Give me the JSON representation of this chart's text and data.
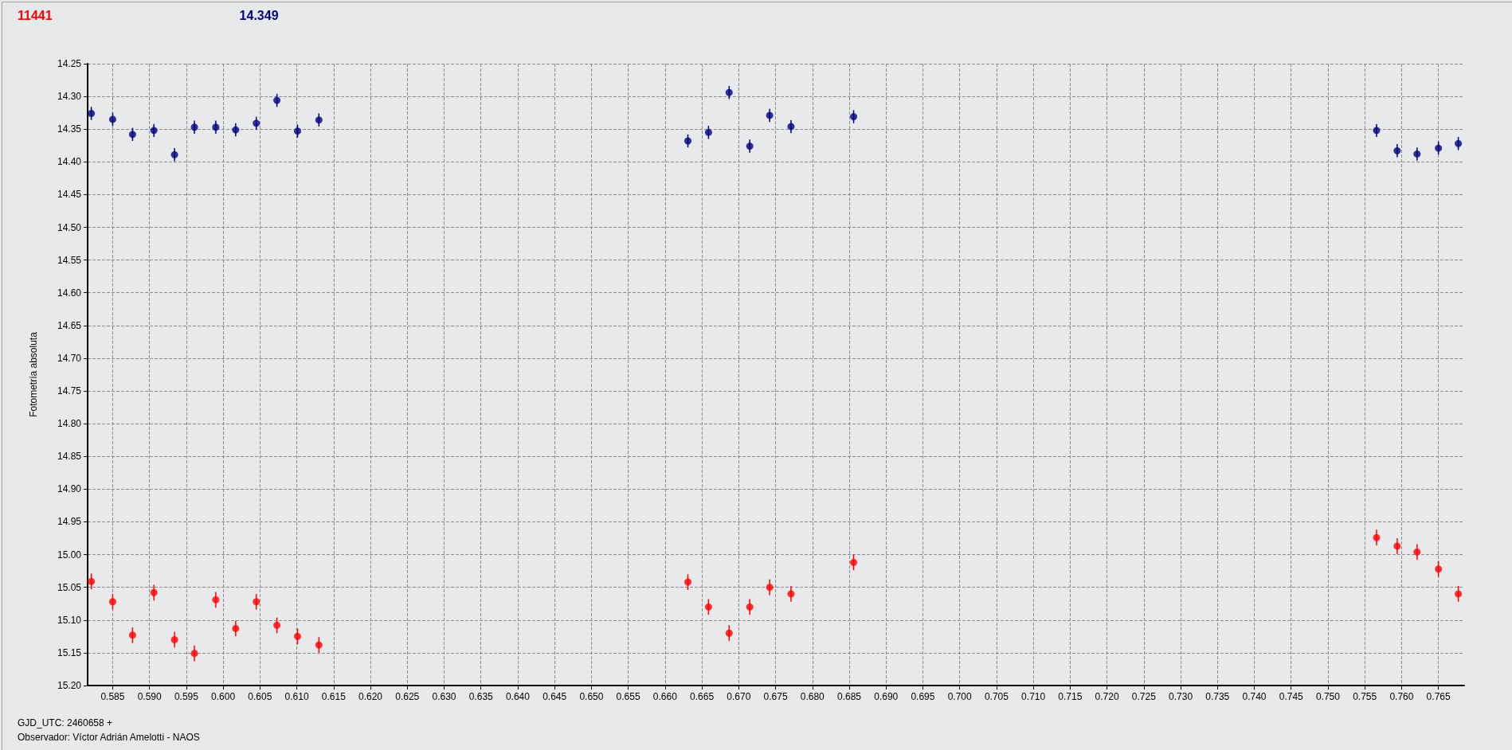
{
  "chart_data": {
    "type": "scatter",
    "ylabel": "Fotometría absoluta",
    "annotations": [
      "GJD_UTC: 2460658 +",
      "Observador: Víctor Adrián Amelotti - NAOS"
    ],
    "x": [
      0.5821,
      0.585,
      0.5877,
      0.5906,
      0.5934,
      0.5961,
      0.599,
      0.6017,
      0.6045,
      0.6073,
      0.6101,
      0.613,
      0.6631,
      0.6659,
      0.6687,
      0.6715,
      0.6742,
      0.6771,
      0.6856,
      0.7566,
      0.7594,
      0.7621,
      0.765,
      0.7677
    ],
    "series": [
      {
        "name": "11441",
        "color": "#ff0000",
        "values": [
          15.041,
          15.072,
          15.123,
          15.058,
          15.13,
          15.151,
          15.069,
          15.113,
          15.072,
          15.108,
          15.125,
          15.138,
          15.042,
          15.08,
          15.12,
          15.08,
          15.05,
          15.06,
          15.012,
          14.974,
          14.987,
          14.996,
          15.022,
          15.06
        ],
        "errors": [
          0.012,
          0.012,
          0.012,
          0.012,
          0.012,
          0.012,
          0.012,
          0.012,
          0.012,
          0.012,
          0.012,
          0.012,
          0.012,
          0.012,
          0.012,
          0.012,
          0.012,
          0.012,
          0.012,
          0.012,
          0.012,
          0.012,
          0.012,
          0.012
        ]
      },
      {
        "name": "14.349",
        "color": "#000080",
        "values": [
          14.326,
          14.335,
          14.358,
          14.352,
          14.389,
          14.347,
          14.347,
          14.351,
          14.341,
          14.306,
          14.353,
          14.336,
          14.368,
          14.355,
          14.294,
          14.376,
          14.329,
          14.346,
          14.331,
          14.352,
          14.383,
          14.388,
          14.379,
          14.372
        ],
        "errors": [
          0.01,
          0.01,
          0.01,
          0.01,
          0.01,
          0.01,
          0.01,
          0.01,
          0.01,
          0.01,
          0.01,
          0.01,
          0.01,
          0.01,
          0.01,
          0.01,
          0.01,
          0.01,
          0.01,
          0.01,
          0.01,
          0.01,
          0.01,
          0.01
        ]
      }
    ],
    "xlim": [
      0.5816,
      0.7685
    ],
    "xticks": [
      0.585,
      {
        "value": 0.59,
        "label": "0.590"
      },
      0.595,
      {
        "value": 0.6,
        "label": "0.600"
      },
      0.605,
      {
        "value": 0.61,
        "label": "0.610"
      },
      0.615,
      {
        "value": 0.62,
        "label": "0.620"
      },
      0.625,
      {
        "value": 0.63,
        "label": "0.630"
      },
      0.635,
      {
        "value": 0.64,
        "label": "0.640"
      },
      0.645,
      {
        "value": 0.65,
        "label": "0.650"
      },
      0.655,
      {
        "value": 0.66,
        "label": "0.660"
      },
      0.665,
      {
        "value": 0.67,
        "label": "0.670"
      },
      0.675,
      {
        "value": 0.68,
        "label": "0.680"
      },
      0.685,
      {
        "value": 0.69,
        "label": "0.690"
      },
      0.695,
      {
        "value": 0.7,
        "label": "0.700"
      },
      0.705,
      {
        "value": 0.71,
        "label": "0.710"
      },
      0.715,
      {
        "value": 0.72,
        "label": "0.720"
      },
      0.725,
      {
        "value": 0.73,
        "label": "0.730"
      },
      0.735,
      {
        "value": 0.74,
        "label": "0.740"
      },
      0.745,
      {
        "value": 0.75,
        "label": "0.750"
      },
      0.755,
      {
        "value": 0.76,
        "label": "0.760"
      },
      0.765
    ],
    "ylim": [
      15.2,
      14.25
    ],
    "yticks": [
      14.25,
      {
        "value": 14.3,
        "label": "14.30"
      },
      14.35,
      {
        "value": 14.4,
        "label": "14.40"
      },
      14.45,
      {
        "value": 14.5,
        "label": "14.50"
      },
      14.55,
      {
        "value": 14.6,
        "label": "14.60"
      },
      14.65,
      {
        "value": 14.7,
        "label": "14.70"
      },
      14.75,
      {
        "value": 14.8,
        "label": "14.80"
      },
      14.85,
      {
        "value": 14.9,
        "label": "14.90"
      },
      14.95,
      {
        "value": 15.0,
        "label": "15.00"
      },
      15.05,
      {
        "value": 15.1,
        "label": "15.10"
      },
      15.15,
      {
        "value": 15.2,
        "label": "15.20"
      }
    ],
    "grid": true,
    "legend": "top left",
    "marker": "circle"
  }
}
